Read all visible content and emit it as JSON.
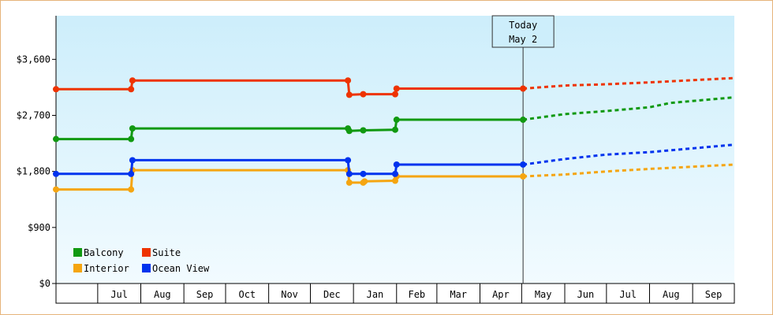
{
  "chart_data": {
    "type": "line",
    "ylim": [
      0,
      4300
    ],
    "y_ticks": [
      {
        "value": 0,
        "label": "$0"
      },
      {
        "value": 900,
        "label": "$900"
      },
      {
        "value": 1800,
        "label": "$1,800"
      },
      {
        "value": 2700,
        "label": "$2,700"
      },
      {
        "value": 3600,
        "label": "$3,600"
      }
    ],
    "x_range": [
      "2023-06-01",
      "2024-10-01"
    ],
    "x_ticks": [
      "Jul",
      "Aug",
      "Sep",
      "Oct",
      "Nov",
      "Dec",
      "Jan",
      "Feb",
      "Mar",
      "Apr",
      "May",
      "Jun",
      "Jul",
      "Aug",
      "Sep"
    ],
    "today": {
      "date": "2024-05-02",
      "line1": "Today",
      "line2": "May 2"
    },
    "grid": false,
    "legend_position": "bottom-left",
    "series": [
      {
        "name": "Balcony",
        "color": "#119911",
        "history": [
          [
            "2023-06-01",
            2320
          ],
          [
            "2023-07-25",
            2320
          ],
          [
            "2023-07-26",
            2490
          ],
          [
            "2023-12-28",
            2490
          ],
          [
            "2023-12-29",
            2450
          ],
          [
            "2024-01-08",
            2460
          ],
          [
            "2024-01-31",
            2470
          ],
          [
            "2024-02-01",
            2630
          ],
          [
            "2024-05-02",
            2630
          ]
        ],
        "forecast": [
          [
            "2024-05-02",
            2630
          ],
          [
            "2024-06-01",
            2720
          ],
          [
            "2024-07-01",
            2770
          ],
          [
            "2024-08-01",
            2830
          ],
          [
            "2024-08-16",
            2900
          ],
          [
            "2024-10-01",
            2990
          ]
        ]
      },
      {
        "name": "Suite",
        "color": "#ee3300",
        "history": [
          [
            "2023-06-01",
            3120
          ],
          [
            "2023-07-25",
            3120
          ],
          [
            "2023-07-26",
            3260
          ],
          [
            "2023-12-28",
            3260
          ],
          [
            "2023-12-29",
            3030
          ],
          [
            "2024-01-08",
            3040
          ],
          [
            "2024-01-31",
            3040
          ],
          [
            "2024-02-01",
            3130
          ],
          [
            "2024-05-02",
            3130
          ]
        ],
        "forecast": [
          [
            "2024-05-02",
            3130
          ],
          [
            "2024-06-01",
            3180
          ],
          [
            "2024-07-01",
            3200
          ],
          [
            "2024-08-01",
            3230
          ],
          [
            "2024-10-01",
            3300
          ]
        ]
      },
      {
        "name": "Interior",
        "color": "#f5a511",
        "history": [
          [
            "2023-06-01",
            1510
          ],
          [
            "2023-07-25",
            1510
          ],
          [
            "2023-07-26",
            1820
          ],
          [
            "2023-12-28",
            1820
          ],
          [
            "2023-12-29",
            1620
          ],
          [
            "2024-01-08",
            1620
          ],
          [
            "2024-01-09",
            1640
          ],
          [
            "2024-01-31",
            1650
          ],
          [
            "2024-02-01",
            1720
          ],
          [
            "2024-05-02",
            1720
          ]
        ],
        "forecast": [
          [
            "2024-05-02",
            1720
          ],
          [
            "2024-06-01",
            1750
          ],
          [
            "2024-07-01",
            1800
          ],
          [
            "2024-08-01",
            1840
          ],
          [
            "2024-10-01",
            1910
          ]
        ]
      },
      {
        "name": "Ocean View",
        "color": "#0033ee",
        "history": [
          [
            "2023-06-01",
            1760
          ],
          [
            "2023-07-25",
            1760
          ],
          [
            "2023-07-26",
            1980
          ],
          [
            "2023-12-28",
            1980
          ],
          [
            "2023-12-29",
            1760
          ],
          [
            "2024-01-08",
            1760
          ],
          [
            "2024-01-31",
            1760
          ],
          [
            "2024-02-01",
            1910
          ],
          [
            "2024-05-02",
            1910
          ]
        ],
        "forecast": [
          [
            "2024-05-02",
            1910
          ],
          [
            "2024-06-01",
            2000
          ],
          [
            "2024-07-01",
            2070
          ],
          [
            "2024-08-01",
            2110
          ],
          [
            "2024-10-01",
            2230
          ]
        ]
      }
    ]
  }
}
